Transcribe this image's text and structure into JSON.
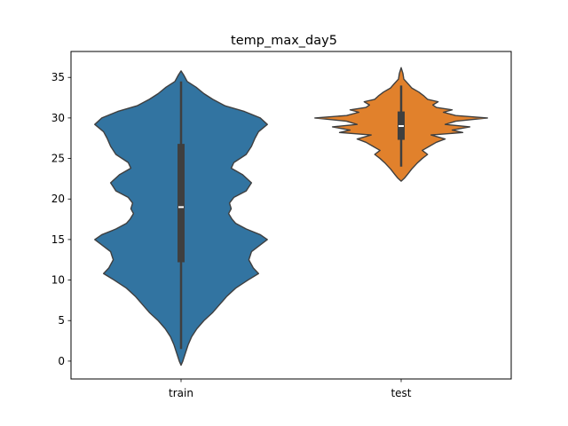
{
  "chart_data": {
    "type": "violin",
    "title": "temp_max_day5",
    "xlabel": "",
    "ylabel": "",
    "categories": [
      "train",
      "test"
    ],
    "colors": [
      "#3274a1",
      "#e1812c"
    ],
    "ylim": [
      -2.2,
      38.2
    ],
    "yticks": [
      0,
      5,
      10,
      15,
      20,
      25,
      30,
      35
    ],
    "grid": false,
    "violins": [
      {
        "category": "train",
        "color": "#3274a1",
        "median": 19,
        "q1": 12.2,
        "q3": 26.8,
        "whisker_low": 1.5,
        "whisker_high": 34.5,
        "min": -0.5,
        "max": 35.8,
        "density_profile": [
          [
            -0.5,
            0.0
          ],
          [
            0,
            0.02
          ],
          [
            1,
            0.05
          ],
          [
            2,
            0.08
          ],
          [
            3,
            0.12
          ],
          [
            4,
            0.18
          ],
          [
            5,
            0.26
          ],
          [
            6,
            0.36
          ],
          [
            7,
            0.44
          ],
          [
            8,
            0.52
          ],
          [
            9,
            0.62
          ],
          [
            10,
            0.76
          ],
          [
            10.8,
            0.88
          ],
          [
            11.5,
            0.82
          ],
          [
            12.5,
            0.77
          ],
          [
            13.5,
            0.8
          ],
          [
            14.5,
            0.92
          ],
          [
            15,
            0.98
          ],
          [
            15.6,
            0.9
          ],
          [
            16.3,
            0.74
          ],
          [
            17,
            0.62
          ],
          [
            17.5,
            0.58
          ],
          [
            18.2,
            0.54
          ],
          [
            18.8,
            0.57
          ],
          [
            19.5,
            0.55
          ],
          [
            20.2,
            0.6
          ],
          [
            21,
            0.74
          ],
          [
            22,
            0.8
          ],
          [
            23,
            0.7
          ],
          [
            23.8,
            0.57
          ],
          [
            24.5,
            0.6
          ],
          [
            25.5,
            0.74
          ],
          [
            26.5,
            0.8
          ],
          [
            27.5,
            0.84
          ],
          [
            28.3,
            0.88
          ],
          [
            29.2,
            0.98
          ],
          [
            30,
            0.9
          ],
          [
            30.8,
            0.72
          ],
          [
            31.5,
            0.5
          ],
          [
            32.3,
            0.36
          ],
          [
            33,
            0.26
          ],
          [
            33.8,
            0.17
          ],
          [
            34.5,
            0.07
          ],
          [
            35.3,
            0.03
          ],
          [
            35.8,
            0.0
          ]
        ]
      },
      {
        "category": "test",
        "color": "#e1812c",
        "median": 29,
        "q1": 27.3,
        "q3": 30.8,
        "whisker_low": 24,
        "whisker_high": 34,
        "min": 22.2,
        "max": 36.2,
        "density_profile": [
          [
            22.2,
            0.0
          ],
          [
            22.6,
            0.04
          ],
          [
            23,
            0.07
          ],
          [
            23.7,
            0.12
          ],
          [
            24.4,
            0.18
          ],
          [
            25,
            0.24
          ],
          [
            25.5,
            0.3
          ],
          [
            26,
            0.24
          ],
          [
            26.5,
            0.32
          ],
          [
            27,
            0.4
          ],
          [
            27.4,
            0.5
          ],
          [
            27.9,
            0.34
          ],
          [
            28.2,
            0.7
          ],
          [
            28.5,
            0.58
          ],
          [
            28.9,
            0.78
          ],
          [
            29.2,
            0.5
          ],
          [
            29.6,
            0.62
          ],
          [
            30,
            0.98
          ],
          [
            30.3,
            0.62
          ],
          [
            30.7,
            0.48
          ],
          [
            31,
            0.58
          ],
          [
            31.3,
            0.4
          ],
          [
            31.6,
            0.36
          ],
          [
            32,
            0.42
          ],
          [
            32.3,
            0.3
          ],
          [
            32.7,
            0.26
          ],
          [
            33.2,
            0.2
          ],
          [
            33.7,
            0.12
          ],
          [
            34.2,
            0.08
          ],
          [
            34.8,
            0.03
          ],
          [
            35.5,
            0.02
          ],
          [
            36.2,
            0.0
          ]
        ]
      }
    ]
  }
}
